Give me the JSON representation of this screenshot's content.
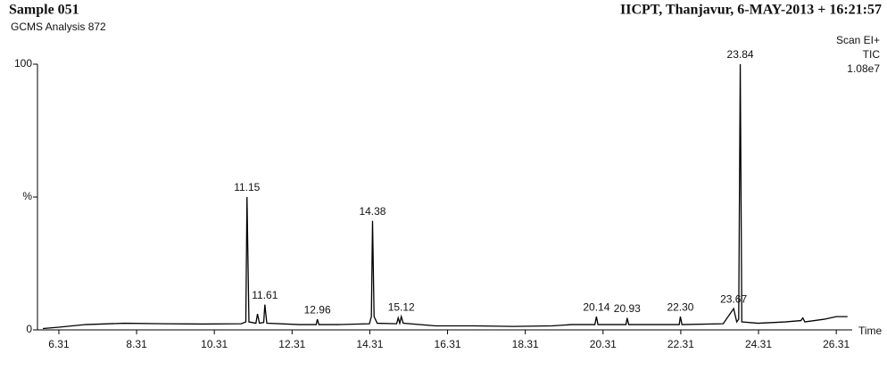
{
  "chart_data": {
    "type": "line",
    "title": "Sample 051",
    "subtitle": "GCMS Analysis 872",
    "header_right": "IICPT, Thanjavur,  6-MAY-2013 + 16:21:57",
    "scan_mode": "Scan EI+",
    "trace_label": "TIC",
    "intensity": "1.08e7",
    "x_label": "Time",
    "xlim": [
      5.76,
      26.72
    ],
    "ylim": [
      0,
      100
    ],
    "xticks": [
      6.31,
      8.31,
      10.31,
      12.31,
      14.31,
      16.31,
      18.31,
      20.31,
      22.31,
      24.31,
      26.31
    ],
    "yticks": [
      0,
      {
        "value": 50,
        "label": "%"
      },
      100
    ],
    "series": [
      {
        "name": "TIC",
        "color": "#000000",
        "x": [
          5.9,
          6.31,
          7,
          8,
          9,
          10,
          11.0,
          11.12,
          11.15,
          11.2,
          11.38,
          11.42,
          11.47,
          11.58,
          11.61,
          11.66,
          12.5,
          12.93,
          12.96,
          13.0,
          13.5,
          14.3,
          14.35,
          14.38,
          14.42,
          14.5,
          15.0,
          15.04,
          15.08,
          15.12,
          15.17,
          16,
          17,
          18,
          19,
          19.5,
          20.1,
          20.14,
          20.18,
          20.9,
          20.93,
          20.97,
          22.27,
          22.3,
          22.34,
          23.4,
          23.67,
          23.75,
          23.8,
          23.84,
          23.88,
          24.3,
          25,
          25.4,
          25.45,
          25.5,
          26,
          26.31,
          26.6
        ],
        "values": [
          0.5,
          1,
          2,
          2.5,
          2.3,
          2.2,
          2.3,
          3,
          50,
          3,
          2.5,
          6,
          2.5,
          2.8,
          9.5,
          2.5,
          2,
          2,
          4,
          2,
          2,
          2.3,
          5,
          41,
          5,
          2.5,
          2.3,
          4.5,
          2.5,
          5,
          2.5,
          1.5,
          1.5,
          1.3,
          1.5,
          2,
          2,
          5,
          2,
          2,
          4.5,
          2,
          2,
          5,
          2,
          2.3,
          8,
          3,
          4,
          100,
          3,
          2.5,
          3,
          3.5,
          4.5,
          3,
          4,
          5,
          5
        ]
      }
    ],
    "peaks": {
      "x": [
        11.15,
        11.61,
        12.96,
        14.38,
        15.12,
        20.14,
        20.93,
        22.3,
        23.67,
        23.84
      ],
      "values": [
        50,
        9.5,
        4,
        41,
        5,
        5,
        4.5,
        5,
        8,
        100
      ],
      "value_labels": [
        "11.15",
        "11.61",
        "12.96",
        "14.38",
        "15.12",
        "20.14",
        "20.93",
        "22.30",
        "23.67",
        "23.84"
      ]
    }
  }
}
